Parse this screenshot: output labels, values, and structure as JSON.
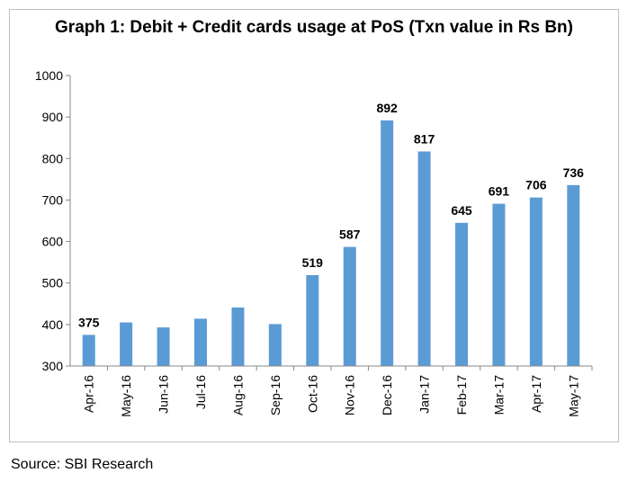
{
  "chart_data": {
    "type": "bar",
    "title": "Graph 1: Debit + Credit cards usage at PoS (Txn value in Rs Bn)",
    "categories": [
      "Apr-16",
      "May-16",
      "Jun-16",
      "Jul-16",
      "Aug-16",
      "Sep-16",
      "Oct-16",
      "Nov-16",
      "Dec-16",
      "Jan-17",
      "Feb-17",
      "Mar-17",
      "Apr-17",
      "May-17"
    ],
    "values": [
      375,
      405,
      393,
      414,
      441,
      401,
      519,
      587,
      892,
      817,
      645,
      691,
      706,
      736
    ],
    "data_labels": [
      "375",
      "",
      "",
      "",
      "",
      "",
      "519",
      "587",
      "892",
      "817",
      "645",
      "691",
      "706",
      "736"
    ],
    "ylim": [
      300,
      1000
    ],
    "yticks": [
      300,
      400,
      500,
      600,
      700,
      800,
      900,
      1000
    ],
    "xlabel": "",
    "ylabel": "",
    "bar_color": "#5b9bd5",
    "grid": false,
    "legend": "none"
  },
  "source": "Source: SBI Research"
}
